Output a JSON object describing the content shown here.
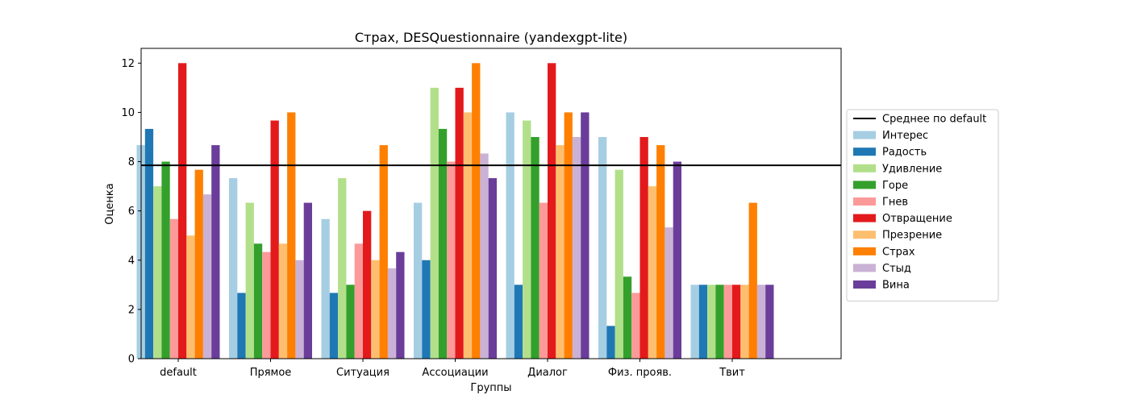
{
  "chart_data": {
    "type": "bar",
    "title": "Страх, DESQuestionnaire (yandexgpt-lite)",
    "xlabel": "Группы",
    "ylabel": "Оценка",
    "ylim": [
      0,
      12.6
    ],
    "yticks": [
      0,
      2,
      4,
      6,
      8,
      10,
      12
    ],
    "categories": [
      "default",
      "Прямое",
      "Ситуация",
      "Ассоциации",
      "Диалог",
      "Физ. прояв.",
      "Твит"
    ],
    "reference_line": {
      "name": "Среднее по default",
      "value": 7.85,
      "color": "#000000"
    },
    "legend_position": "center-right, outside",
    "series": [
      {
        "name": "Интерес",
        "color": "#a6cee3",
        "values": [
          8.67,
          7.33,
          5.67,
          6.33,
          10.0,
          9.0,
          3.0
        ]
      },
      {
        "name": "Радость",
        "color": "#1f78b4",
        "values": [
          9.33,
          2.67,
          2.67,
          4.0,
          3.0,
          1.33,
          3.0
        ]
      },
      {
        "name": "Удивление",
        "color": "#b2df8a",
        "values": [
          7.0,
          6.33,
          7.33,
          11.0,
          9.67,
          7.67,
          3.0
        ]
      },
      {
        "name": "Горе",
        "color": "#33a02c",
        "values": [
          8.0,
          4.67,
          3.0,
          9.33,
          9.0,
          3.33,
          3.0
        ]
      },
      {
        "name": "Гнев",
        "color": "#fb9a99",
        "values": [
          5.67,
          4.33,
          4.67,
          8.0,
          6.33,
          2.67,
          3.0
        ]
      },
      {
        "name": "Отвращение",
        "color": "#e31a1c",
        "values": [
          12.0,
          9.67,
          6.0,
          11.0,
          12.0,
          9.0,
          3.0
        ]
      },
      {
        "name": "Презрение",
        "color": "#fdbf6f",
        "values": [
          5.0,
          4.67,
          4.0,
          10.0,
          8.67,
          7.0,
          3.0
        ]
      },
      {
        "name": "Страх",
        "color": "#ff7f00",
        "values": [
          7.67,
          10.0,
          8.67,
          12.0,
          10.0,
          8.67,
          6.33
        ]
      },
      {
        "name": "Стыд",
        "color": "#cab2d6",
        "values": [
          6.67,
          4.0,
          3.67,
          8.33,
          9.0,
          5.33,
          3.0
        ]
      },
      {
        "name": "Вина",
        "color": "#6a3d9a",
        "values": [
          8.67,
          6.33,
          4.33,
          7.33,
          10.0,
          8.0,
          3.0
        ]
      }
    ]
  }
}
